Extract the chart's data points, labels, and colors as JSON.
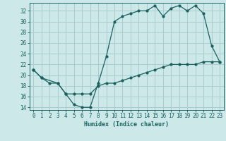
{
  "xlabel": "Humidex (Indice chaleur)",
  "bg_color": "#cce8e8",
  "grid_color": "#aacccc",
  "line_color": "#1a6060",
  "xlim": [
    -0.5,
    23.5
  ],
  "ylim": [
    13.5,
    33.5
  ],
  "xticks": [
    0,
    1,
    2,
    3,
    4,
    5,
    6,
    7,
    8,
    9,
    10,
    11,
    12,
    13,
    14,
    15,
    16,
    17,
    18,
    19,
    20,
    21,
    22,
    23
  ],
  "yticks": [
    14,
    16,
    18,
    20,
    22,
    24,
    26,
    28,
    30,
    32
  ],
  "curve1_x": [
    0,
    1,
    3,
    4,
    5,
    6,
    7,
    8,
    9,
    10,
    11,
    12,
    13,
    14,
    15,
    16,
    17,
    18,
    19,
    20,
    21,
    22,
    23
  ],
  "curve1_y": [
    21,
    19.5,
    18.5,
    16.5,
    14.5,
    14,
    14,
    18.5,
    23.5,
    30,
    31,
    31.5,
    32,
    32,
    33,
    31,
    32.5,
    33,
    32,
    33,
    31.5,
    25.5,
    22.5
  ],
  "curve2_x": [
    0,
    1,
    2,
    3,
    4,
    5,
    6,
    7,
    8,
    9,
    10,
    11,
    12,
    13,
    14,
    15,
    16,
    17,
    18,
    19,
    20,
    21,
    22,
    23
  ],
  "curve2_y": [
    21,
    19.5,
    18.5,
    18.5,
    16.5,
    16.5,
    16.5,
    16.5,
    18,
    18.5,
    18.5,
    19,
    19.5,
    20,
    20.5,
    21,
    21.5,
    22,
    22,
    22,
    22,
    22.5,
    22.5,
    22.5
  ]
}
